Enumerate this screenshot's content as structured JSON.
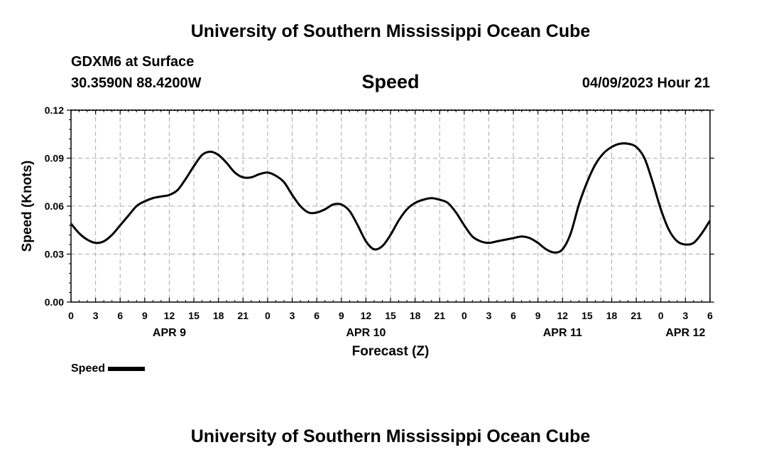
{
  "header": {
    "title": "University of Southern Mississippi Ocean Cube",
    "station": "GDXM6 at Surface",
    "coords": "30.3590N  88.4200W",
    "datetime": "04/09/2023 Hour 21"
  },
  "footer": {
    "title": "University of Southern Mississippi Ocean Cube"
  },
  "legend": {
    "label": "Speed",
    "color": "#000000"
  },
  "chart_data": {
    "type": "line",
    "title": "Speed",
    "xlabel": "Forecast (Z)",
    "ylabel": "Speed (Knots)",
    "ylim": [
      0,
      0.12
    ],
    "xlim": [
      0,
      78
    ],
    "x_unit": "hours since 2023-04-09 00Z",
    "grid": true,
    "y_ticks": [
      {
        "value": 0.0,
        "label": "0.00"
      },
      {
        "value": 0.03,
        "label": "0.03"
      },
      {
        "value": 0.06,
        "label": "0.06"
      },
      {
        "value": 0.09,
        "label": "0.09"
      },
      {
        "value": 0.12,
        "label": "0.12"
      }
    ],
    "x_ticks": [
      {
        "value": 0,
        "label": "0"
      },
      {
        "value": 3,
        "label": "3"
      },
      {
        "value": 6,
        "label": "6"
      },
      {
        "value": 9,
        "label": "9"
      },
      {
        "value": 12,
        "label": "12"
      },
      {
        "value": 15,
        "label": "15"
      },
      {
        "value": 18,
        "label": "18"
      },
      {
        "value": 21,
        "label": "21"
      },
      {
        "value": 24,
        "label": "0"
      },
      {
        "value": 27,
        "label": "3"
      },
      {
        "value": 30,
        "label": "6"
      },
      {
        "value": 33,
        "label": "9"
      },
      {
        "value": 36,
        "label": "12"
      },
      {
        "value": 39,
        "label": "15"
      },
      {
        "value": 42,
        "label": "18"
      },
      {
        "value": 45,
        "label": "21"
      },
      {
        "value": 48,
        "label": "0"
      },
      {
        "value": 51,
        "label": "3"
      },
      {
        "value": 54,
        "label": "6"
      },
      {
        "value": 57,
        "label": "9"
      },
      {
        "value": 60,
        "label": "12"
      },
      {
        "value": 63,
        "label": "15"
      },
      {
        "value": 66,
        "label": "18"
      },
      {
        "value": 69,
        "label": "21"
      },
      {
        "value": 72,
        "label": "0"
      },
      {
        "value": 75,
        "label": "3"
      },
      {
        "value": 78,
        "label": "6"
      }
    ],
    "date_labels": [
      {
        "value": 12,
        "label": "APR 9"
      },
      {
        "value": 36,
        "label": "APR 10"
      },
      {
        "value": 60,
        "label": "APR 11"
      },
      {
        "value": 75,
        "label": "APR 12"
      }
    ],
    "series": [
      {
        "name": "Speed",
        "color": "#000000",
        "x": [
          0,
          1,
          2,
          3,
          4,
          5,
          6,
          7,
          8,
          9,
          10,
          11,
          12,
          13,
          14,
          15,
          16,
          17,
          18,
          19,
          20,
          21,
          22,
          23,
          24,
          25,
          26,
          27,
          28,
          29,
          30,
          31,
          32,
          33,
          34,
          35,
          36,
          37,
          38,
          39,
          40,
          41,
          42,
          43,
          44,
          45,
          46,
          47,
          48,
          49,
          50,
          51,
          52,
          53,
          54,
          55,
          56,
          57,
          58,
          59,
          60,
          61,
          62,
          63,
          64,
          65,
          66,
          67,
          68,
          69,
          70,
          71,
          72,
          73,
          74,
          75,
          76,
          77,
          78
        ],
        "values": [
          0.049,
          0.043,
          0.039,
          0.037,
          0.038,
          0.042,
          0.048,
          0.054,
          0.06,
          0.063,
          0.065,
          0.066,
          0.067,
          0.07,
          0.077,
          0.085,
          0.092,
          0.094,
          0.092,
          0.087,
          0.081,
          0.078,
          0.078,
          0.08,
          0.081,
          0.079,
          0.075,
          0.067,
          0.06,
          0.056,
          0.056,
          0.058,
          0.061,
          0.061,
          0.057,
          0.048,
          0.038,
          0.033,
          0.035,
          0.042,
          0.051,
          0.058,
          0.062,
          0.064,
          0.065,
          0.064,
          0.062,
          0.056,
          0.048,
          0.041,
          0.038,
          0.037,
          0.038,
          0.039,
          0.04,
          0.041,
          0.04,
          0.037,
          0.033,
          0.031,
          0.033,
          0.043,
          0.061,
          0.075,
          0.086,
          0.093,
          0.097,
          0.099,
          0.099,
          0.097,
          0.09,
          0.075,
          0.058,
          0.045,
          0.038,
          0.036,
          0.037,
          0.043,
          0.051
        ]
      }
    ]
  }
}
